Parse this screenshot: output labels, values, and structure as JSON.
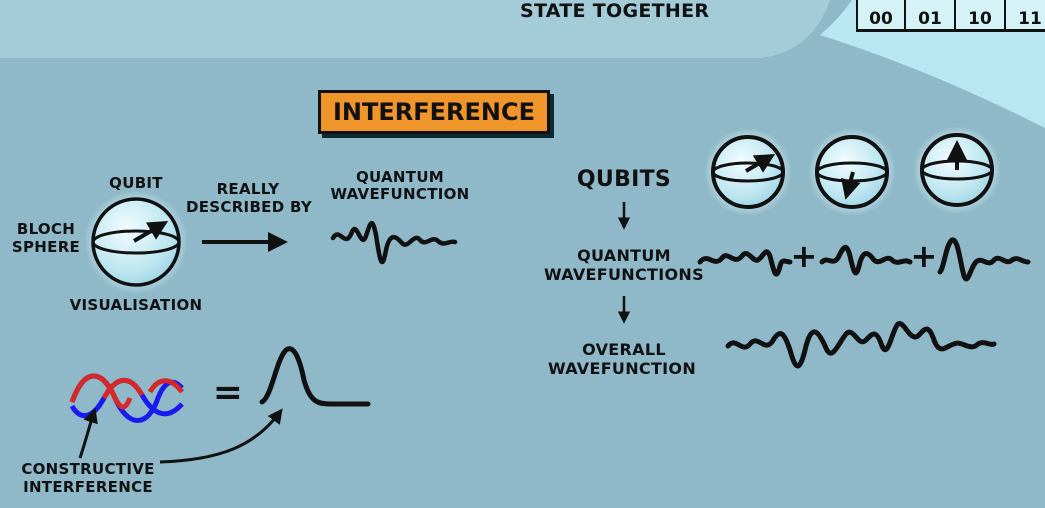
{
  "top": {
    "partial_text": "STATE TOGETHER",
    "states": [
      "00",
      "01",
      "10",
      "11"
    ]
  },
  "title": "INTERFERENCE",
  "left": {
    "qubit": "QUBIT",
    "bloch_line1": "BLOCH",
    "bloch_line2": "SPHERE",
    "visualisation": "VISUALISATION",
    "really_line1": "REALLY",
    "really_line2": "DESCRIBED BY",
    "qwf_line1": "QUANTUM",
    "qwf_line2": "WAVEFUNCTION",
    "equals": "=",
    "constructive_line1": "CONSTRUCTIVE",
    "constructive_line2": "INTERFERENCE"
  },
  "right": {
    "qubits": "QUBITS",
    "quantum_line1": "QUANTUM",
    "quantum_line2": "WAVEFUNCTIONS",
    "overall_line1": "OVERALL",
    "overall_line2": "WAVEFUNCTION",
    "plus": "+"
  },
  "colors": {
    "background": "#8fb9c8",
    "top_panel": "#a4cbd8",
    "title_box": "#f0952a",
    "wave_red": "#d62828",
    "wave_blue": "#1a1aee",
    "sphere": "#cfeef6",
    "ink": "#111111"
  },
  "icons": [
    "bloch-sphere-icon",
    "arrow-icon",
    "wavefunction-icon",
    "interference-waves-icon",
    "peak-icon"
  ]
}
